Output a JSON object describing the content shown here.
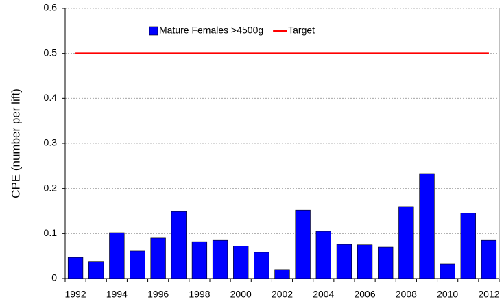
{
  "chart_data": {
    "type": "bar",
    "y_label": "CPE (number per lift)",
    "categories": [
      "1992",
      null,
      "1994",
      null,
      "1996",
      null,
      "1998",
      null,
      "2000",
      null,
      "2002",
      null,
      "2004",
      null,
      "2006",
      null,
      "2008",
      null,
      "2010",
      null,
      "2012"
    ],
    "series": [
      {
        "name": "Mature Females >4500g",
        "color": "#0000ff",
        "type": "bar",
        "values": [
          0.047,
          0.037,
          0.102,
          0.061,
          0.09,
          0.149,
          0.082,
          0.085,
          0.072,
          0.058,
          0.02,
          0.152,
          0.105,
          0.076,
          0.075,
          0.07,
          0.16,
          0.233,
          0.032,
          0.145,
          0.085
        ]
      },
      {
        "name": "Target",
        "color": "#ff0000",
        "type": "line",
        "values": [
          0.5,
          0.5,
          0.5,
          0.5,
          0.5,
          0.5,
          0.5,
          0.5,
          0.5,
          0.5,
          0.5,
          0.5,
          0.5,
          0.5,
          0.5,
          0.5,
          0.5,
          0.5,
          0.5,
          0.5,
          0.5
        ]
      }
    ],
    "ylim": [
      0,
      0.6
    ],
    "yticks": [
      0,
      0.1,
      0.2,
      0.3,
      0.4,
      0.5,
      0.6
    ],
    "grid": true,
    "legend": "top"
  }
}
